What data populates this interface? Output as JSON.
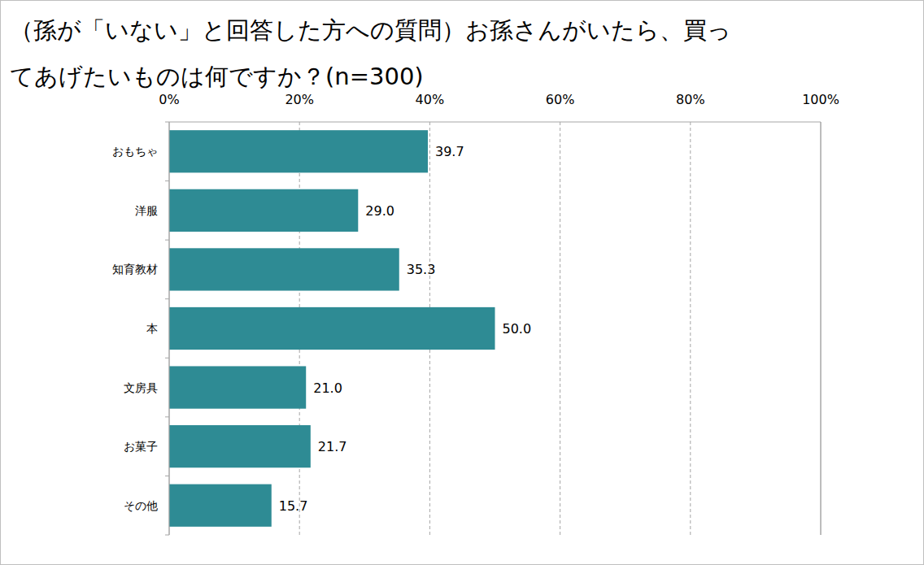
{
  "chart_data": {
    "type": "bar",
    "orientation": "horizontal",
    "title": "（孫が「いない」と回答した方への質問）お孫さんがいたら、買ってあげたいものは何ですか？(n=300)",
    "categories": [
      "おもちゃ",
      "洋服",
      "知育教材",
      "本",
      "文房具",
      "お菓子",
      "その他"
    ],
    "values": [
      39.7,
      29.0,
      35.3,
      50.0,
      21.0,
      21.7,
      15.7
    ],
    "value_labels": [
      "39.7",
      "29.0",
      "35.3",
      "50.0",
      "21.0",
      "21.7",
      "15.7"
    ],
    "color": "#2e8b94",
    "xlim": [
      0,
      100
    ],
    "xticks": [
      {
        "value": 0,
        "label": "0%"
      },
      {
        "value": 20,
        "label": "20%"
      },
      {
        "value": 40,
        "label": "40%"
      },
      {
        "value": 60,
        "label": "60%"
      },
      {
        "value": 80,
        "label": "80%"
      },
      {
        "value": 100,
        "label": "100%"
      }
    ],
    "grid": true,
    "data_labels": true
  }
}
